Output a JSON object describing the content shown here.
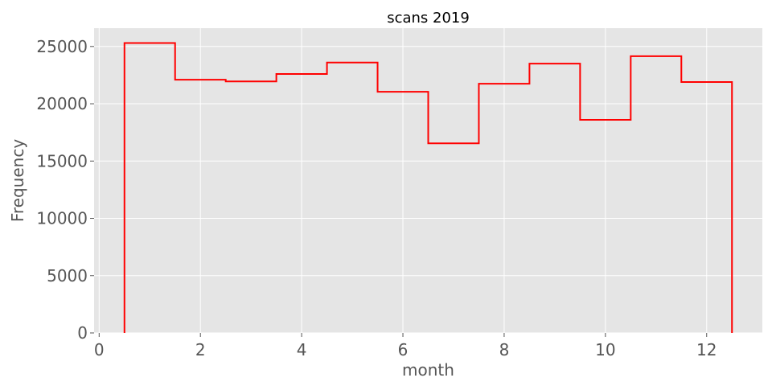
{
  "chart_data": {
    "type": "bar",
    "style": "step-histogram",
    "title": "scans 2019",
    "xlabel": "month",
    "ylabel": "Frequency",
    "categories": [
      1,
      2,
      3,
      4,
      5,
      6,
      7,
      8,
      9,
      10,
      11,
      12
    ],
    "values": [
      25300,
      22100,
      21950,
      22600,
      23600,
      21050,
      16550,
      21750,
      23500,
      18600,
      24150,
      21900
    ],
    "bin_width": 1,
    "xlim": [
      -0.1,
      13.1
    ],
    "ylim": [
      0,
      26600
    ],
    "xticks": [
      0,
      2,
      4,
      6,
      8,
      10,
      12
    ],
    "yticks": [
      0,
      5000,
      10000,
      15000,
      20000,
      25000
    ],
    "grid": true,
    "colors": {
      "line": "#ff0000",
      "plot_background": "#e5e5e5",
      "grid": "#ffffff",
      "text": "#555555"
    }
  }
}
